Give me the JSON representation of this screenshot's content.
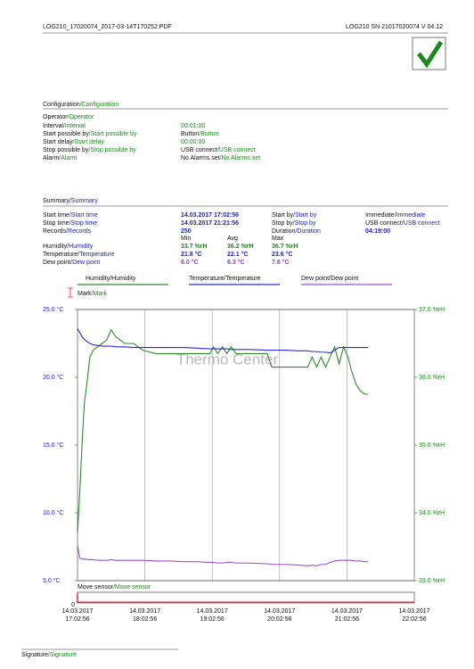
{
  "header": {
    "file": "LOG210_17020074_2017-03-14T170252.PDF",
    "device": "LOG210  SN 21017020074  V 04.12"
  },
  "configuration": {
    "title": [
      "Configuration",
      "/Configuration"
    ],
    "rows": [
      {
        "label": [
          "Operator",
          "/Operator"
        ]
      },
      {
        "label": [
          "Interval",
          "/Interval"
        ],
        "value": "00:01:00"
      },
      {
        "label": [
          "Start possible by",
          "/Start possible by"
        ],
        "value": [
          "Button",
          "/Button"
        ]
      },
      {
        "label": [
          "Start delay",
          "/Start delay"
        ],
        "value": "00:00:00"
      },
      {
        "label": [
          "Stop possible by",
          "/Stop possible by"
        ],
        "value": [
          "USB connect",
          "/USB connect"
        ]
      },
      {
        "label": [
          "Alarm",
          "/Alarm"
        ],
        "value": [
          "No Alarms set",
          "/No Alarms set"
        ]
      }
    ]
  },
  "summary": {
    "title": [
      "Summary",
      "/Summary"
    ],
    "rows": [
      [
        [
          "Start time",
          "/Start time"
        ],
        "14.03.2017 17:02:56",
        [
          "Start by",
          "/Start by"
        ],
        [
          "Immediate",
          "/Immediate"
        ]
      ],
      [
        [
          "Stop time",
          "/Stop time"
        ],
        "14.03.2017 21:21:56",
        [
          "Stop by",
          "/Stop by"
        ],
        [
          "USB connect",
          "/USB connect"
        ]
      ],
      [
        [
          "Records",
          "/Records"
        ],
        "250",
        [
          "Duration",
          "/Duration"
        ],
        "04:19:00"
      ]
    ],
    "stats": {
      "columns": [
        "Min",
        "Avg",
        "Max"
      ],
      "rows": [
        {
          "label": [
            "Humidity",
            "/Humidity"
          ],
          "values": [
            "33.7 %rH",
            "36.2 %rH",
            "36.7 %rH"
          ]
        },
        {
          "label": [
            "Temperature",
            "/Temperature"
          ],
          "values": [
            "21.8 °C",
            "22.1 °C",
            "23.6 °C"
          ]
        },
        {
          "label": [
            "Dew point",
            "/Dew point"
          ],
          "values": [
            "6.0 °C",
            "6.3 °C",
            "7.6 °C"
          ]
        }
      ]
    }
  },
  "mark_label": [
    "Mark",
    "/Mark"
  ],
  "move_sensor": {
    "label": [
      "Move sensor",
      "/Move sensor"
    ],
    "tick": 0
  },
  "signature": [
    "Signature",
    "/Signature"
  ],
  "chart_data": {
    "type": "line",
    "watermark": "Thermo Center",
    "grid": "x",
    "x": [
      "2017-03-14T17:02:56",
      "2017-03-14T17:04:56",
      "2017-03-14T17:06:56",
      "2017-03-14T17:08:56",
      "2017-03-14T17:11:56",
      "2017-03-14T17:13:56",
      "2017-03-14T17:16:56",
      "2017-03-14T17:20:56",
      "2017-03-14T17:24:56",
      "2017-03-14T17:28:56",
      "2017-03-14T17:32:56",
      "2017-03-14T17:36:56",
      "2017-03-14T17:44:56",
      "2017-03-14T17:52:56",
      "2017-03-14T18:00:56",
      "2017-03-14T18:12:56",
      "2017-03-14T18:24:56",
      "2017-03-14T18:36:56",
      "2017-03-14T18:48:56",
      "2017-03-14T19:00:56",
      "2017-03-14T19:03:56",
      "2017-03-14T19:07:56",
      "2017-03-14T19:11:56",
      "2017-03-14T19:15:56",
      "2017-03-14T19:19:56",
      "2017-03-14T19:23:56",
      "2017-03-14T19:35:56",
      "2017-03-14T19:51:56",
      "2017-03-14T19:55:56",
      "2017-03-14T20:07:56",
      "2017-03-14T20:19:56",
      "2017-03-14T20:27:56",
      "2017-03-14T20:31:56",
      "2017-03-14T20:35:56",
      "2017-03-14T20:39:56",
      "2017-03-14T20:43:56",
      "2017-03-14T20:47:56",
      "2017-03-14T20:51:56",
      "2017-03-14T20:55:56",
      "2017-03-14T20:59:56",
      "2017-03-14T21:03:56",
      "2017-03-14T21:06:56",
      "2017-03-14T21:10:56",
      "2017-03-14T21:14:56",
      "2017-03-14T21:18:56",
      "2017-03-14T21:21:56"
    ],
    "xlim": [
      "2017-03-14T17:02:56",
      "2017-03-14T22:02:56"
    ],
    "xticks": [
      {
        "value": "2017-03-14T17:02:56",
        "label": "14.03.2017 17:02:56"
      },
      {
        "value": "2017-03-14T18:02:56",
        "label": "14.03.2017 18:02:56"
      },
      {
        "value": "2017-03-14T19:02:56",
        "label": "14.03.2017 19:02:56"
      },
      {
        "value": "2017-03-14T20:02:56",
        "label": "14.03.2017 20:02:56"
      },
      {
        "value": "2017-03-14T21:02:56",
        "label": "14.03.2017 21:02:56"
      },
      {
        "value": "2017-03-14T22:02:56",
        "label": "14.03.2017 22:02:56"
      }
    ],
    "ylim": [
      5,
      25
    ],
    "yticks": [
      {
        "value": 25,
        "label": "25.0 °C"
      },
      {
        "value": 20,
        "label": "20.0 °C"
      },
      {
        "value": 15,
        "label": "15.0 °C"
      },
      {
        "value": 10,
        "label": "10.0 °C"
      },
      {
        "value": 5,
        "label": "5.0 °C"
      }
    ],
    "y2lim": [
      33,
      37
    ],
    "y2ticks": [
      {
        "value": 37,
        "label": "37.0 %rH"
      },
      {
        "value": 36,
        "label": "36.0 %rH"
      },
      {
        "value": 35,
        "label": "35.0 %rH"
      },
      {
        "value": 34,
        "label": "34.0 %rH"
      },
      {
        "value": 33,
        "label": "33.0 %rH"
      }
    ],
    "series": [
      {
        "name": "Humidity/Humidity",
        "color": "#2e8b2e",
        "axis": "y2",
        "values": [
          33.7,
          34.3,
          35.0,
          35.6,
          36.0,
          36.3,
          36.4,
          36.45,
          36.5,
          36.55,
          36.7,
          36.6,
          36.5,
          36.5,
          36.4,
          36.35,
          36.35,
          36.35,
          36.35,
          36.35,
          36.45,
          36.35,
          36.45,
          36.35,
          36.45,
          36.35,
          36.35,
          36.35,
          36.15,
          36.15,
          36.15,
          36.15,
          36.3,
          36.15,
          36.3,
          36.15,
          36.3,
          36.45,
          36.2,
          36.45,
          36.3,
          36.1,
          35.9,
          35.8,
          35.75,
          35.75
        ]
      },
      {
        "name": "Temperature/Temperature",
        "color": "#2b2bd0",
        "values": [
          23.6,
          23.3,
          23.0,
          22.8,
          22.6,
          22.5,
          22.4,
          22.35,
          22.3,
          22.3,
          22.3,
          22.25,
          22.25,
          22.2,
          22.2,
          22.2,
          22.2,
          22.2,
          22.15,
          22.1,
          22.1,
          22.1,
          22.1,
          22.1,
          22.05,
          22.05,
          22.05,
          22.0,
          22.0,
          22.0,
          21.95,
          21.95,
          21.9,
          21.9,
          21.85,
          21.85,
          21.8,
          22.0,
          22.2,
          22.2,
          22.2,
          22.2,
          22.2,
          22.2,
          22.2,
          22.2
        ]
      },
      {
        "name": "Dew point/Dew point",
        "color": "#9d4fd6",
        "values": [
          7.6,
          6.7,
          6.6,
          6.6,
          6.55,
          6.55,
          6.55,
          6.5,
          6.5,
          6.5,
          6.55,
          6.5,
          6.5,
          6.5,
          6.5,
          6.45,
          6.45,
          6.4,
          6.4,
          6.35,
          6.35,
          6.3,
          6.3,
          6.35,
          6.35,
          6.3,
          6.3,
          6.25,
          6.2,
          6.2,
          6.15,
          6.1,
          6.15,
          6.1,
          6.2,
          6.2,
          6.35,
          6.45,
          6.5,
          6.5,
          6.5,
          6.5,
          6.45,
          6.45,
          6.4,
          6.4
        ]
      }
    ]
  }
}
